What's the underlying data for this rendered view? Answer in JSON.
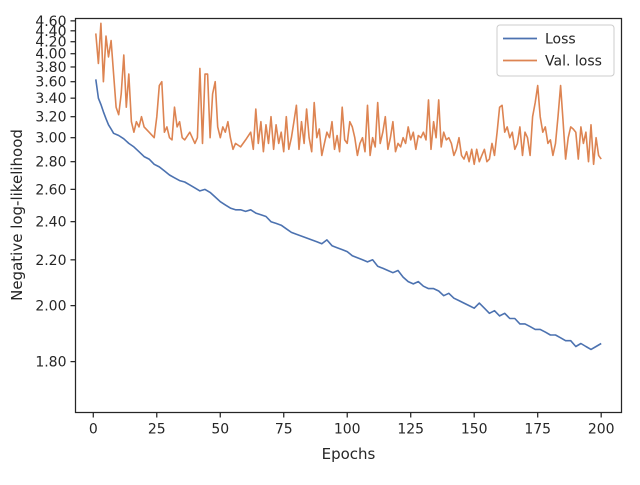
{
  "chart_data": {
    "type": "line",
    "title": "",
    "xlabel": "Epochs",
    "ylabel": "Negative log-likelihood",
    "xlim": [
      -7,
      208
    ],
    "ylim": [
      1.65,
      4.65
    ],
    "yscale": "reciprocal",
    "grid": false,
    "legend_position": "top-right",
    "x_ticks": [
      0,
      25,
      50,
      75,
      100,
      125,
      150,
      175,
      200
    ],
    "y_ticks": [
      1.8,
      2.0,
      2.2,
      2.4,
      2.6,
      2.8,
      3.0,
      3.2,
      3.4,
      3.6,
      3.8,
      4.0,
      4.2,
      4.4,
      4.6
    ],
    "y_tick_labels": [
      "1.80",
      "2.00",
      "2.20",
      "2.40",
      "2.60",
      "2.80",
      "3.00",
      "3.20",
      "3.40",
      "3.60",
      "3.80",
      "4.00",
      "4.20",
      "4.40",
      "4.60"
    ],
    "series": [
      {
        "name": "Loss",
        "color": "#4c72b0",
        "points": [
          [
            1,
            3.63
          ],
          [
            2,
            3.4
          ],
          [
            3,
            3.33
          ],
          [
            4,
            3.25
          ],
          [
            5,
            3.18
          ],
          [
            6,
            3.12
          ],
          [
            7,
            3.08
          ],
          [
            8,
            3.04
          ],
          [
            10,
            3.02
          ],
          [
            12,
            2.99
          ],
          [
            14,
            2.95
          ],
          [
            16,
            2.92
          ],
          [
            18,
            2.88
          ],
          [
            20,
            2.84
          ],
          [
            22,
            2.82
          ],
          [
            24,
            2.78
          ],
          [
            26,
            2.76
          ],
          [
            28,
            2.73
          ],
          [
            30,
            2.7
          ],
          [
            32,
            2.68
          ],
          [
            34,
            2.66
          ],
          [
            36,
            2.65
          ],
          [
            38,
            2.63
          ],
          [
            40,
            2.61
          ],
          [
            42,
            2.59
          ],
          [
            44,
            2.6
          ],
          [
            46,
            2.58
          ],
          [
            48,
            2.55
          ],
          [
            50,
            2.52
          ],
          [
            52,
            2.5
          ],
          [
            54,
            2.48
          ],
          [
            56,
            2.47
          ],
          [
            58,
            2.47
          ],
          [
            60,
            2.46
          ],
          [
            62,
            2.47
          ],
          [
            64,
            2.45
          ],
          [
            66,
            2.44
          ],
          [
            68,
            2.43
          ],
          [
            70,
            2.4
          ],
          [
            72,
            2.39
          ],
          [
            74,
            2.38
          ],
          [
            76,
            2.36
          ],
          [
            78,
            2.34
          ],
          [
            80,
            2.33
          ],
          [
            82,
            2.32
          ],
          [
            84,
            2.31
          ],
          [
            86,
            2.3
          ],
          [
            88,
            2.29
          ],
          [
            90,
            2.28
          ],
          [
            92,
            2.3
          ],
          [
            94,
            2.27
          ],
          [
            96,
            2.26
          ],
          [
            98,
            2.25
          ],
          [
            100,
            2.24
          ],
          [
            102,
            2.22
          ],
          [
            104,
            2.21
          ],
          [
            106,
            2.2
          ],
          [
            108,
            2.19
          ],
          [
            110,
            2.2
          ],
          [
            112,
            2.17
          ],
          [
            114,
            2.16
          ],
          [
            116,
            2.15
          ],
          [
            118,
            2.14
          ],
          [
            120,
            2.15
          ],
          [
            122,
            2.12
          ],
          [
            124,
            2.1
          ],
          [
            126,
            2.09
          ],
          [
            128,
            2.1
          ],
          [
            130,
            2.08
          ],
          [
            132,
            2.07
          ],
          [
            134,
            2.07
          ],
          [
            136,
            2.06
          ],
          [
            138,
            2.04
          ],
          [
            140,
            2.05
          ],
          [
            142,
            2.03
          ],
          [
            144,
            2.02
          ],
          [
            146,
            2.01
          ],
          [
            148,
            2.0
          ],
          [
            150,
            1.99
          ],
          [
            152,
            2.01
          ],
          [
            154,
            1.99
          ],
          [
            156,
            1.97
          ],
          [
            158,
            1.98
          ],
          [
            160,
            1.96
          ],
          [
            162,
            1.97
          ],
          [
            164,
            1.95
          ],
          [
            166,
            1.95
          ],
          [
            168,
            1.93
          ],
          [
            170,
            1.93
          ],
          [
            172,
            1.92
          ],
          [
            174,
            1.91
          ],
          [
            176,
            1.91
          ],
          [
            178,
            1.9
          ],
          [
            180,
            1.89
          ],
          [
            182,
            1.89
          ],
          [
            184,
            1.88
          ],
          [
            186,
            1.87
          ],
          [
            188,
            1.87
          ],
          [
            190,
            1.85
          ],
          [
            192,
            1.86
          ],
          [
            194,
            1.85
          ],
          [
            196,
            1.84
          ],
          [
            198,
            1.85
          ],
          [
            200,
            1.86
          ]
        ]
      },
      {
        "name": "Val. loss",
        "color": "#dd8452",
        "points": [
          [
            1,
            4.35
          ],
          [
            2,
            3.85
          ],
          [
            3,
            4.55
          ],
          [
            4,
            3.6
          ],
          [
            5,
            4.3
          ],
          [
            6,
            3.95
          ],
          [
            7,
            4.22
          ],
          [
            8,
            3.7
          ],
          [
            9,
            3.3
          ],
          [
            10,
            3.22
          ],
          [
            11,
            3.45
          ],
          [
            12,
            3.98
          ],
          [
            13,
            3.3
          ],
          [
            14,
            3.7
          ],
          [
            15,
            3.15
          ],
          [
            16,
            3.05
          ],
          [
            17,
            3.15
          ],
          [
            18,
            3.1
          ],
          [
            19,
            3.2
          ],
          [
            20,
            3.1
          ],
          [
            22,
            3.05
          ],
          [
            24,
            3.0
          ],
          [
            25,
            3.2
          ],
          [
            26,
            3.55
          ],
          [
            27,
            3.6
          ],
          [
            28,
            3.05
          ],
          [
            29,
            3.1
          ],
          [
            30,
            3.0
          ],
          [
            31,
            2.98
          ],
          [
            32,
            3.3
          ],
          [
            33,
            3.1
          ],
          [
            34,
            3.15
          ],
          [
            35,
            3.0
          ],
          [
            36,
            2.98
          ],
          [
            38,
            3.05
          ],
          [
            40,
            2.95
          ],
          [
            41,
            3.0
          ],
          [
            42,
            3.78
          ],
          [
            43,
            2.95
          ],
          [
            44,
            3.7
          ],
          [
            45,
            3.7
          ],
          [
            46,
            3.0
          ],
          [
            47,
            3.45
          ],
          [
            48,
            3.6
          ],
          [
            49,
            3.1
          ],
          [
            50,
            3.0
          ],
          [
            51,
            3.1
          ],
          [
            52,
            3.05
          ],
          [
            53,
            3.15
          ],
          [
            54,
            3.0
          ],
          [
            55,
            2.9
          ],
          [
            56,
            2.95
          ],
          [
            58,
            2.92
          ],
          [
            60,
            2.98
          ],
          [
            62,
            3.05
          ],
          [
            63,
            2.9
          ],
          [
            64,
            3.28
          ],
          [
            65,
            2.95
          ],
          [
            66,
            3.15
          ],
          [
            67,
            2.88
          ],
          [
            68,
            3.12
          ],
          [
            69,
            2.95
          ],
          [
            70,
            3.2
          ],
          [
            71,
            2.9
          ],
          [
            72,
            3.12
          ],
          [
            73,
            2.95
          ],
          [
            74,
            3.05
          ],
          [
            75,
            2.88
          ],
          [
            76,
            3.2
          ],
          [
            77,
            2.9
          ],
          [
            78,
            3.0
          ],
          [
            79,
            3.15
          ],
          [
            80,
            3.32
          ],
          [
            81,
            2.9
          ],
          [
            82,
            3.15
          ],
          [
            83,
            2.95
          ],
          [
            84,
            3.28
          ],
          [
            85,
            3.0
          ],
          [
            86,
            2.88
          ],
          [
            87,
            3.35
          ],
          [
            88,
            3.0
          ],
          [
            89,
            3.08
          ],
          [
            90,
            2.85
          ],
          [
            91,
            2.95
          ],
          [
            92,
            3.05
          ],
          [
            93,
            3.0
          ],
          [
            94,
            3.15
          ],
          [
            95,
            2.9
          ],
          [
            96,
            3.02
          ],
          [
            97,
            2.88
          ],
          [
            98,
            3.3
          ],
          [
            99,
            2.98
          ],
          [
            100,
            2.95
          ],
          [
            101,
            3.15
          ],
          [
            102,
            3.1
          ],
          [
            103,
            3.0
          ],
          [
            104,
            2.85
          ],
          [
            105,
            2.95
          ],
          [
            106,
            3.0
          ],
          [
            107,
            2.88
          ],
          [
            108,
            3.32
          ],
          [
            109,
            2.85
          ],
          [
            110,
            3.0
          ],
          [
            111,
            2.92
          ],
          [
            112,
            3.35
          ],
          [
            113,
            2.95
          ],
          [
            114,
            3.05
          ],
          [
            115,
            3.2
          ],
          [
            116,
            2.9
          ],
          [
            117,
            3.0
          ],
          [
            118,
            3.15
          ],
          [
            119,
            2.88
          ],
          [
            120,
            2.95
          ],
          [
            121,
            2.92
          ],
          [
            122,
            3.0
          ],
          [
            123,
            2.95
          ],
          [
            124,
            3.1
          ],
          [
            125,
            2.98
          ],
          [
            126,
            3.05
          ],
          [
            127,
            2.9
          ],
          [
            128,
            3.02
          ],
          [
            129,
            3.0
          ],
          [
            130,
            3.05
          ],
          [
            131,
            2.98
          ],
          [
            132,
            3.38
          ],
          [
            133,
            2.9
          ],
          [
            134,
            3.15
          ],
          [
            135,
            3.0
          ],
          [
            136,
            3.38
          ],
          [
            137,
            2.92
          ],
          [
            138,
            3.05
          ],
          [
            139,
            2.98
          ],
          [
            140,
            3.0
          ],
          [
            141,
            2.95
          ],
          [
            142,
            2.85
          ],
          [
            143,
            2.9
          ],
          [
            144,
            3.0
          ],
          [
            145,
            2.85
          ],
          [
            146,
            2.82
          ],
          [
            147,
            2.88
          ],
          [
            148,
            2.8
          ],
          [
            149,
            2.9
          ],
          [
            150,
            2.78
          ],
          [
            151,
            2.9
          ],
          [
            152,
            2.8
          ],
          [
            153,
            2.85
          ],
          [
            154,
            2.9
          ],
          [
            155,
            2.8
          ],
          [
            156,
            2.82
          ],
          [
            157,
            2.95
          ],
          [
            158,
            2.85
          ],
          [
            159,
            3.05
          ],
          [
            160,
            3.3
          ],
          [
            161,
            3.32
          ],
          [
            162,
            3.05
          ],
          [
            163,
            3.1
          ],
          [
            164,
            3.0
          ],
          [
            165,
            3.05
          ],
          [
            166,
            2.9
          ],
          [
            167,
            2.95
          ],
          [
            168,
            3.1
          ],
          [
            169,
            2.85
          ],
          [
            170,
            3.05
          ],
          [
            171,
            3.0
          ],
          [
            172,
            2.85
          ],
          [
            173,
            3.2
          ],
          [
            174,
            3.35
          ],
          [
            175,
            3.55
          ],
          [
            176,
            3.2
          ],
          [
            177,
            3.05
          ],
          [
            178,
            3.1
          ],
          [
            179,
            2.95
          ],
          [
            180,
            2.98
          ],
          [
            181,
            2.85
          ],
          [
            182,
            2.95
          ],
          [
            183,
            3.2
          ],
          [
            184,
            3.55
          ],
          [
            185,
            3.15
          ],
          [
            186,
            2.82
          ],
          [
            187,
            3.0
          ],
          [
            188,
            3.1
          ],
          [
            189,
            3.08
          ],
          [
            190,
            3.05
          ],
          [
            191,
            2.82
          ],
          [
            192,
            3.1
          ],
          [
            193,
            2.95
          ],
          [
            194,
            3.05
          ],
          [
            195,
            2.8
          ],
          [
            196,
            3.12
          ],
          [
            197,
            2.78
          ],
          [
            198,
            3.0
          ],
          [
            199,
            2.85
          ],
          [
            200,
            2.82
          ]
        ]
      }
    ]
  }
}
